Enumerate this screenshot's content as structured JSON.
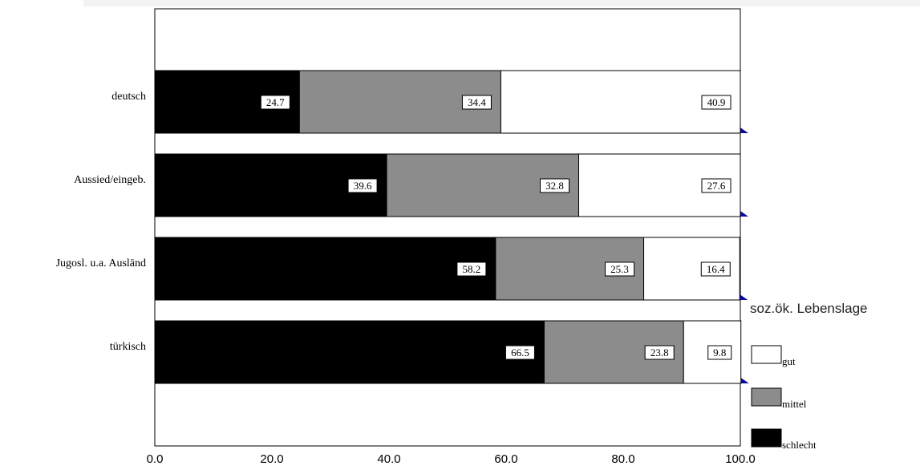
{
  "chart_data": {
    "type": "bar",
    "stacked": true,
    "orientation": "horizontal",
    "categories": [
      "deutsch",
      "Aussied/eingeb.",
      "Jugosl. u.a. Ausländ",
      "türkisch"
    ],
    "series": [
      {
        "name": "schlecht",
        "values": [
          24.7,
          39.6,
          58.2,
          66.5
        ],
        "color": "#000000",
        "shadow_color": "#cc2222"
      },
      {
        "name": "mittel",
        "values": [
          34.4,
          32.8,
          25.3,
          23.8
        ],
        "color": "#8c8c8c",
        "shadow_color": "#22cc22"
      },
      {
        "name": "gut",
        "values": [
          40.9,
          27.6,
          16.4,
          9.8
        ],
        "color": "#ffffff",
        "shadow_color": "#0a0aa0"
      }
    ],
    "xlim": [
      0,
      100
    ],
    "xticks": [
      "0.0",
      "20.0",
      "40.0",
      "60.0",
      "80.0",
      "100.0"
    ],
    "data_labels": [
      [
        "24.7",
        "34.4",
        "40.9"
      ],
      [
        "39.6",
        "32.8",
        "27.6"
      ],
      [
        "58.2",
        "25.3",
        "16.4"
      ],
      [
        "66.5",
        "23.8",
        "9.8"
      ]
    ],
    "legend": {
      "title": "soz.ök. Lebenslage",
      "items": [
        "gut",
        "mittel",
        "schlecht"
      ],
      "colors": [
        "#ffffff",
        "#8c8c8c",
        "#000000"
      ],
      "position": "right"
    },
    "grid": false,
    "xlabel": "",
    "ylabel": ""
  }
}
